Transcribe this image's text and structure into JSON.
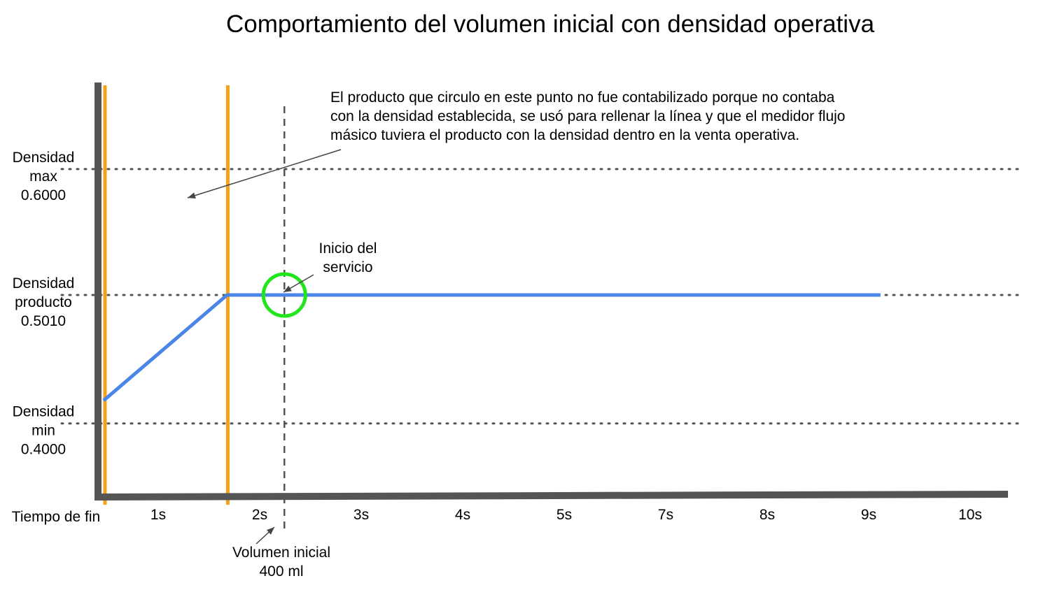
{
  "chart_data": {
    "type": "line",
    "title": "Comportamiento del volumen inicial con densidad operativa",
    "xlabel": "Tiempo de fin",
    "tick_labels": [
      "1s",
      "2s",
      "3s",
      "4s",
      "5s",
      "7s",
      "8s",
      "9s",
      "10s"
    ],
    "reference_lines": [
      {
        "lines": [
          "Densidad",
          "max",
          "0.6000"
        ],
        "value": 0.6
      },
      {
        "lines": [
          "Densidad",
          "producto",
          "0.5010"
        ],
        "value": 0.501
      },
      {
        "lines": [
          "Densidad",
          "min",
          "0.4000"
        ],
        "value": 0.4
      }
    ],
    "ylim": [
      0.35,
      0.65
    ],
    "series": [
      {
        "points": [
          [
            0,
            0.418
          ],
          [
            1.2,
            0.501
          ],
          [
            7.55,
            0.501
          ]
        ]
      }
    ],
    "vertical_markers": [
      0,
      1.2
    ],
    "initial_volume_marker": 1.75,
    "annotations": {
      "note": [
        "El producto que circulo en este punto no fue contabilizado porque no contaba",
        "con la densidad establecida, se usó para rellenar la línea y que el medidor flujo",
        "másico tuviera el producto con la densidad dentro en la venta operativa."
      ],
      "service_start": [
        "Inicio del",
        "servicio"
      ],
      "initial_volume": [
        "Volumen inicial",
        "400 ml"
      ]
    },
    "colors": {
      "series": "#4a86e8",
      "markers": "#f4a11d",
      "axes": "#555555",
      "circle": "#22e51c",
      "reference": "#555555"
    }
  }
}
